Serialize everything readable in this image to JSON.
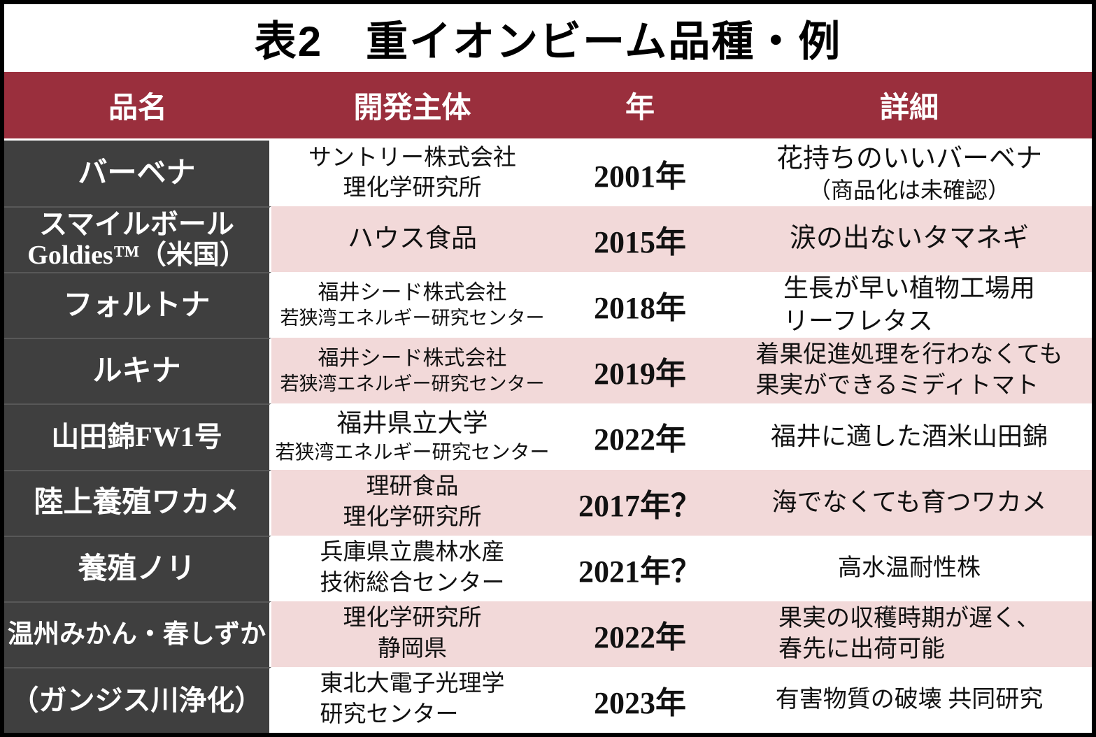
{
  "title": "表2　重イオンビーム品種・例",
  "colors": {
    "header_bg": "#9A2F3D",
    "name_column_bg": "#3F3F3F",
    "row_alt_bg": "#F2D9D9",
    "row_bg": "#FFFFFF",
    "header_text": "#FFFFFF",
    "name_text": "#FFFFFF",
    "body_text": "#111111"
  },
  "header": {
    "col1": "品名",
    "col2": "開発主体",
    "col3": "年",
    "col4": "詳細"
  },
  "rows": [
    {
      "name": [
        "バーベナ"
      ],
      "developer": [
        "サントリー株式会社",
        "理化学研究所"
      ],
      "year": "2001年",
      "detail": [
        "花持ちのいいバーベナ",
        "（商品化は未確認）"
      ]
    },
    {
      "name": [
        "スマイルボール",
        "Goldies™（米国）"
      ],
      "developer": [
        "ハウス食品"
      ],
      "year": "2015年",
      "detail": [
        "涙の出ないタマネギ"
      ]
    },
    {
      "name": [
        "フォルトナ"
      ],
      "developer": [
        "福井シード株式会社",
        "若狭湾エネルギー研究センター"
      ],
      "year": "2018年",
      "detail": [
        "生長が早い植物工場用",
        "リーフレタス"
      ]
    },
    {
      "name": [
        "ルキナ"
      ],
      "developer": [
        "福井シード株式会社",
        "若狭湾エネルギー研究センター"
      ],
      "year": "2019年",
      "detail": [
        "着果促進処理を行わなくても",
        "果実ができるミディトマト"
      ]
    },
    {
      "name": [
        "山田錦FW1号"
      ],
      "developer": [
        "福井県立大学",
        "若狭湾エネルギー研究センター"
      ],
      "year": "2022年",
      "detail": [
        "福井に適した酒米山田錦"
      ]
    },
    {
      "name": [
        "陸上養殖ワカメ"
      ],
      "developer": [
        "理研食品",
        "理化学研究所"
      ],
      "year": "2017年？",
      "detail": [
        "海でなくても育つワカメ"
      ]
    },
    {
      "name": [
        "養殖ノリ"
      ],
      "developer": [
        "兵庫県立農林水産",
        "技術総合センター"
      ],
      "year": "2021年？",
      "detail": [
        "高水温耐性株"
      ]
    },
    {
      "name": [
        "温州みかん・春しずか"
      ],
      "developer": [
        "理化学研究所",
        "静岡県"
      ],
      "year": "2022年",
      "detail": [
        "果実の収穫時期が遅く、",
        "春先に出荷可能"
      ]
    },
    {
      "name": [
        "（ガンジス川浄化）"
      ],
      "developer": [
        "東北大電子光理学",
        "研究センター"
      ],
      "year": "2023年",
      "detail": [
        "有害物質の破壊 共同研究"
      ]
    }
  ],
  "chart_data": {
    "type": "table",
    "title": "表2　重イオンビーム品種・例",
    "columns": [
      "品名",
      "開発主体",
      "年",
      "詳細"
    ],
    "rows": [
      [
        "バーベナ",
        "サントリー株式会社 理化学研究所",
        "2001年",
        "花持ちのいいバーベナ（商品化は未確認）"
      ],
      [
        "スマイルボール Goldies™（米国）",
        "ハウス食品",
        "2015年",
        "涙の出ないタマネギ"
      ],
      [
        "フォルトナ",
        "福井シード株式会社 若狭湾エネルギー研究センター",
        "2018年",
        "生長が早い植物工場用リーフレタス"
      ],
      [
        "ルキナ",
        "福井シード株式会社 若狭湾エネルギー研究センター",
        "2019年",
        "着果促進処理を行わなくても果実ができるミディトマト"
      ],
      [
        "山田錦FW1号",
        "福井県立大学 若狭湾エネルギー研究センター",
        "2022年",
        "福井に適した酒米山田錦"
      ],
      [
        "陸上養殖ワカメ",
        "理研食品 理化学研究所",
        "2017年？",
        "海でなくても育つワカメ"
      ],
      [
        "養殖ノリ",
        "兵庫県立農林水産技術総合センター",
        "2021年？",
        "高水温耐性株"
      ],
      [
        "温州みかん・春しずか",
        "理化学研究所 静岡県",
        "2022年",
        "果実の収穫時期が遅く、春先に出荷可能"
      ],
      [
        "（ガンジス川浄化）",
        "東北大電子光理学研究センター",
        "2023年",
        "有害物質の破壊 共同研究"
      ]
    ],
    "layout": {
      "name_column_style": "dark",
      "alternating_rows": true,
      "legend": "none",
      "grid": "off"
    }
  }
}
